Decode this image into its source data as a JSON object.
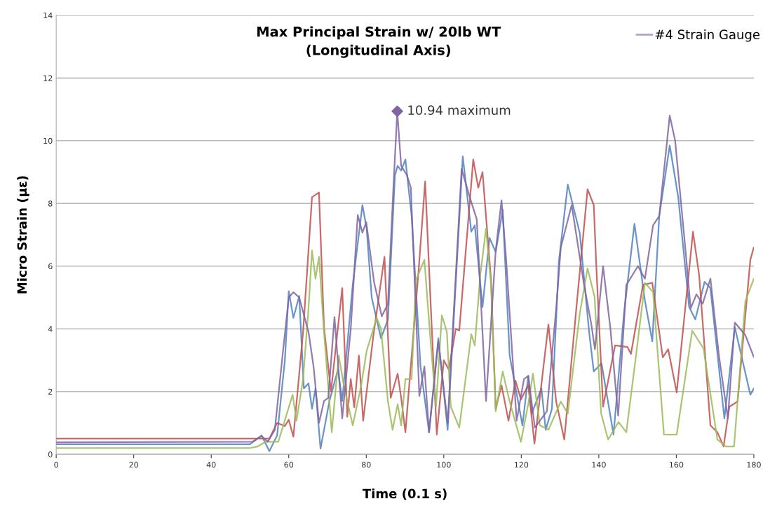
{
  "chart_data": {
    "type": "line",
    "title": "Max Principal Strain w/ 20lb WT\n(Longitudinal Axis)",
    "xlabel": "Time (0.1 s)",
    "ylabel": "Micro Strain (με)",
    "xlim": [
      0,
      180
    ],
    "xticks": [
      0,
      20,
      40,
      60,
      80,
      100,
      120,
      140,
      160,
      180
    ],
    "ylim": [
      0,
      14
    ],
    "yticks": [
      0,
      2,
      4,
      6,
      8,
      10,
      12,
      14
    ],
    "grid": "y",
    "legend": "top right",
    "marker": "none",
    "line_style": "solid",
    "annotations": [
      {
        "text": "10.94 maximum",
        "x": 88,
        "y": 10.94
      }
    ],
    "series": [
      {
        "color": "#4f81bd",
        "x": [
          0,
          50,
          53,
          55,
          57,
          59,
          60,
          61.2,
          62.7,
          63.9,
          65.1,
          66,
          66.9,
          68.2,
          70.5,
          72.7,
          73.8,
          76.5,
          79,
          80.1,
          81.4,
          83.8,
          85.6,
          87.4,
          88.1,
          89,
          90.1,
          91.7,
          94,
          96.2,
          98.6,
          101,
          104.9,
          107.1,
          108,
          110,
          111.8,
          113.4,
          115.2,
          117,
          120.3,
          121.8,
          122.7,
          125.2,
          126.3,
          127.9,
          129.7,
          132,
          135.1,
          137.5,
          138.7,
          140.7,
          143.8,
          146.5,
          149.2,
          151.9,
          153.8,
          155.6,
          158.3,
          160.5,
          163.3,
          164.9,
          167.3,
          168.8,
          172.4,
          175.1,
          179.1,
          180
        ],
        "values": [
          0.32,
          0.32,
          0.6,
          0.1,
          0.6,
          3.0,
          5.2,
          4.35,
          5.05,
          2.1,
          2.26,
          1.45,
          2.1,
          0.18,
          1.7,
          2.7,
          1.7,
          5.4,
          7.95,
          7.2,
          5.0,
          3.7,
          4.3,
          8.9,
          9.2,
          9.05,
          9.4,
          7.6,
          2.8,
          0.7,
          3.7,
          0.78,
          9.5,
          7.1,
          7.3,
          4.7,
          6.9,
          6.45,
          7.8,
          3.15,
          0.92,
          2.5,
          1.3,
          2.1,
          0.78,
          1.45,
          6.15,
          8.6,
          7.05,
          3.9,
          2.64,
          2.9,
          0.63,
          4.5,
          7.35,
          4.9,
          3.6,
          7.6,
          9.85,
          8.2,
          4.7,
          4.3,
          5.5,
          5.3,
          1.14,
          4.05,
          1.9,
          2.1
        ]
      },
      {
        "color": "#c0504d",
        "x": [
          0,
          50,
          55,
          57,
          59,
          60,
          61.2,
          63.7,
          66,
          67.8,
          69.1,
          70.9,
          73.8,
          75.1,
          76,
          76.9,
          78.1,
          79.2,
          81.8,
          84.7,
          86.3,
          88.1,
          89,
          90.1,
          93.5,
          95.2,
          96.8,
          98.2,
          100,
          101.3,
          103.1,
          104,
          107.6,
          108.9,
          110,
          112.2,
          113.4,
          114.9,
          116.7,
          118.5,
          119.9,
          121.8,
          123.4,
          127,
          129,
          131.1,
          134.2,
          137.1,
          138.7,
          139.3,
          141.1,
          144.2,
          147.4,
          148.3,
          151.4,
          153.8,
          156.5,
          157.9,
          160.1,
          164.3,
          165.9,
          168.8,
          170.6,
          172.2,
          173.7,
          175.8,
          179.1,
          180
        ],
        "values": [
          0.5,
          0.5,
          0.5,
          1.0,
          0.9,
          1.1,
          0.56,
          3.9,
          8.2,
          8.35,
          4.05,
          2.0,
          5.3,
          1.2,
          2.4,
          1.5,
          3.15,
          1.07,
          3.75,
          6.3,
          1.8,
          2.57,
          1.8,
          0.7,
          5.85,
          8.7,
          4.3,
          0.63,
          3.0,
          2.7,
          4.0,
          3.95,
          9.4,
          8.5,
          9.0,
          5.55,
          1.45,
          2.2,
          1.07,
          2.35,
          1.75,
          2.2,
          0.34,
          4.14,
          1.68,
          0.47,
          4.65,
          8.45,
          7.95,
          6.15,
          1.52,
          3.47,
          3.42,
          3.2,
          5.4,
          5.47,
          3.09,
          3.35,
          1.97,
          7.1,
          5.7,
          0.92,
          0.7,
          0.25,
          1.52,
          1.68,
          6.2,
          6.6
        ]
      },
      {
        "color": "#9bbb59",
        "x": [
          0,
          50,
          52,
          54,
          57.3,
          61,
          62,
          63.7,
          65.1,
          66,
          66.9,
          67.8,
          69.1,
          71.1,
          72.9,
          74.2,
          76.5,
          78.7,
          80.1,
          82.7,
          83.8,
          85.6,
          86.8,
          88.1,
          89,
          90.1,
          91.7,
          92.8,
          95,
          96.4,
          98,
          99.5,
          100.8,
          101.8,
          104,
          105.8,
          107.1,
          108,
          109.4,
          110.9,
          112.2,
          113.4,
          115.2,
          117,
          119.9,
          121.8,
          123,
          124.8,
          127,
          130.2,
          132,
          135.1,
          137.1,
          138.9,
          140.6,
          142.4,
          145.1,
          147.1,
          149.6,
          151.9,
          154,
          156.8,
          160.1,
          164.1,
          167,
          170.6,
          172.8,
          174.9,
          177.8,
          180
        ],
        "values": [
          0.2,
          0.2,
          0.25,
          0.4,
          0.4,
          1.9,
          1.07,
          2.4,
          4.65,
          6.5,
          5.6,
          6.3,
          3.9,
          0.7,
          3.15,
          2.2,
          0.92,
          2.2,
          3.3,
          4.35,
          4.0,
          1.68,
          0.78,
          1.6,
          0.92,
          2.4,
          2.4,
          5.55,
          6.2,
          3.9,
          1.52,
          4.43,
          3.9,
          1.52,
          0.85,
          2.57,
          3.83,
          3.47,
          5.7,
          7.2,
          5.4,
          1.37,
          2.64,
          1.68,
          0.4,
          1.6,
          2.57,
          0.92,
          0.78,
          1.68,
          1.3,
          4.5,
          5.93,
          5.03,
          1.3,
          0.47,
          1.03,
          0.7,
          3.15,
          5.47,
          5.17,
          0.63,
          0.63,
          3.94,
          3.38,
          0.47,
          0.25,
          0.25,
          4.88,
          5.6
        ]
      },
      {
        "name": "#4 Strain Gauge",
        "color": "#8064a2",
        "x": [
          0,
          50.6,
          53,
          54.6,
          56.4,
          58.4,
          60,
          61.2,
          62.7,
          65.1,
          66.4,
          67.8,
          69.1,
          70.2,
          71.8,
          73.8,
          76,
          77.8,
          79,
          80,
          82,
          84,
          85.6,
          87,
          88,
          89,
          90.5,
          91.5,
          93.7,
          95,
          96.2,
          98.6,
          101,
          104.6,
          106.7,
          108.5,
          110.9,
          113.4,
          114.9,
          116.1,
          118.8,
          120.7,
          121.8,
          123.5,
          126.6,
          129,
          130.2,
          133,
          136.2,
          138,
          139,
          141.1,
          143,
          145,
          147.1,
          150.1,
          151.9,
          154,
          155.6,
          158.3,
          159.7,
          162.3,
          163.7,
          165.2,
          166.8,
          168.8,
          171,
          173.3,
          175.1,
          177.8,
          180
        ],
        "values": [
          0.38,
          0.4,
          0.58,
          0.4,
          0.78,
          3.15,
          5.0,
          5.17,
          5.0,
          3.9,
          2.8,
          1.0,
          1.7,
          1.8,
          4.38,
          1.14,
          4.0,
          7.63,
          7.07,
          7.4,
          5.5,
          4.4,
          4.8,
          8.5,
          10.94,
          9.2,
          8.9,
          8.5,
          1.86,
          2.8,
          0.7,
          3.6,
          1.0,
          9.1,
          8.2,
          7.5,
          1.7,
          6.5,
          8.1,
          6.2,
          1.07,
          2.4,
          2.5,
          0.85,
          1.37,
          4.65,
          6.6,
          7.95,
          5.4,
          4.2,
          3.35,
          6.0,
          4.0,
          1.23,
          5.4,
          6.0,
          5.6,
          7.3,
          7.6,
          10.8,
          10.0,
          6.6,
          4.65,
          5.1,
          4.8,
          5.6,
          3.15,
          1.14,
          4.2,
          3.8,
          3.1
        ]
      },
      {
        "type": "scatter",
        "marker": "diamond",
        "color": "#8064a2",
        "x": [
          88
        ],
        "values": [
          10.94
        ]
      }
    ]
  }
}
